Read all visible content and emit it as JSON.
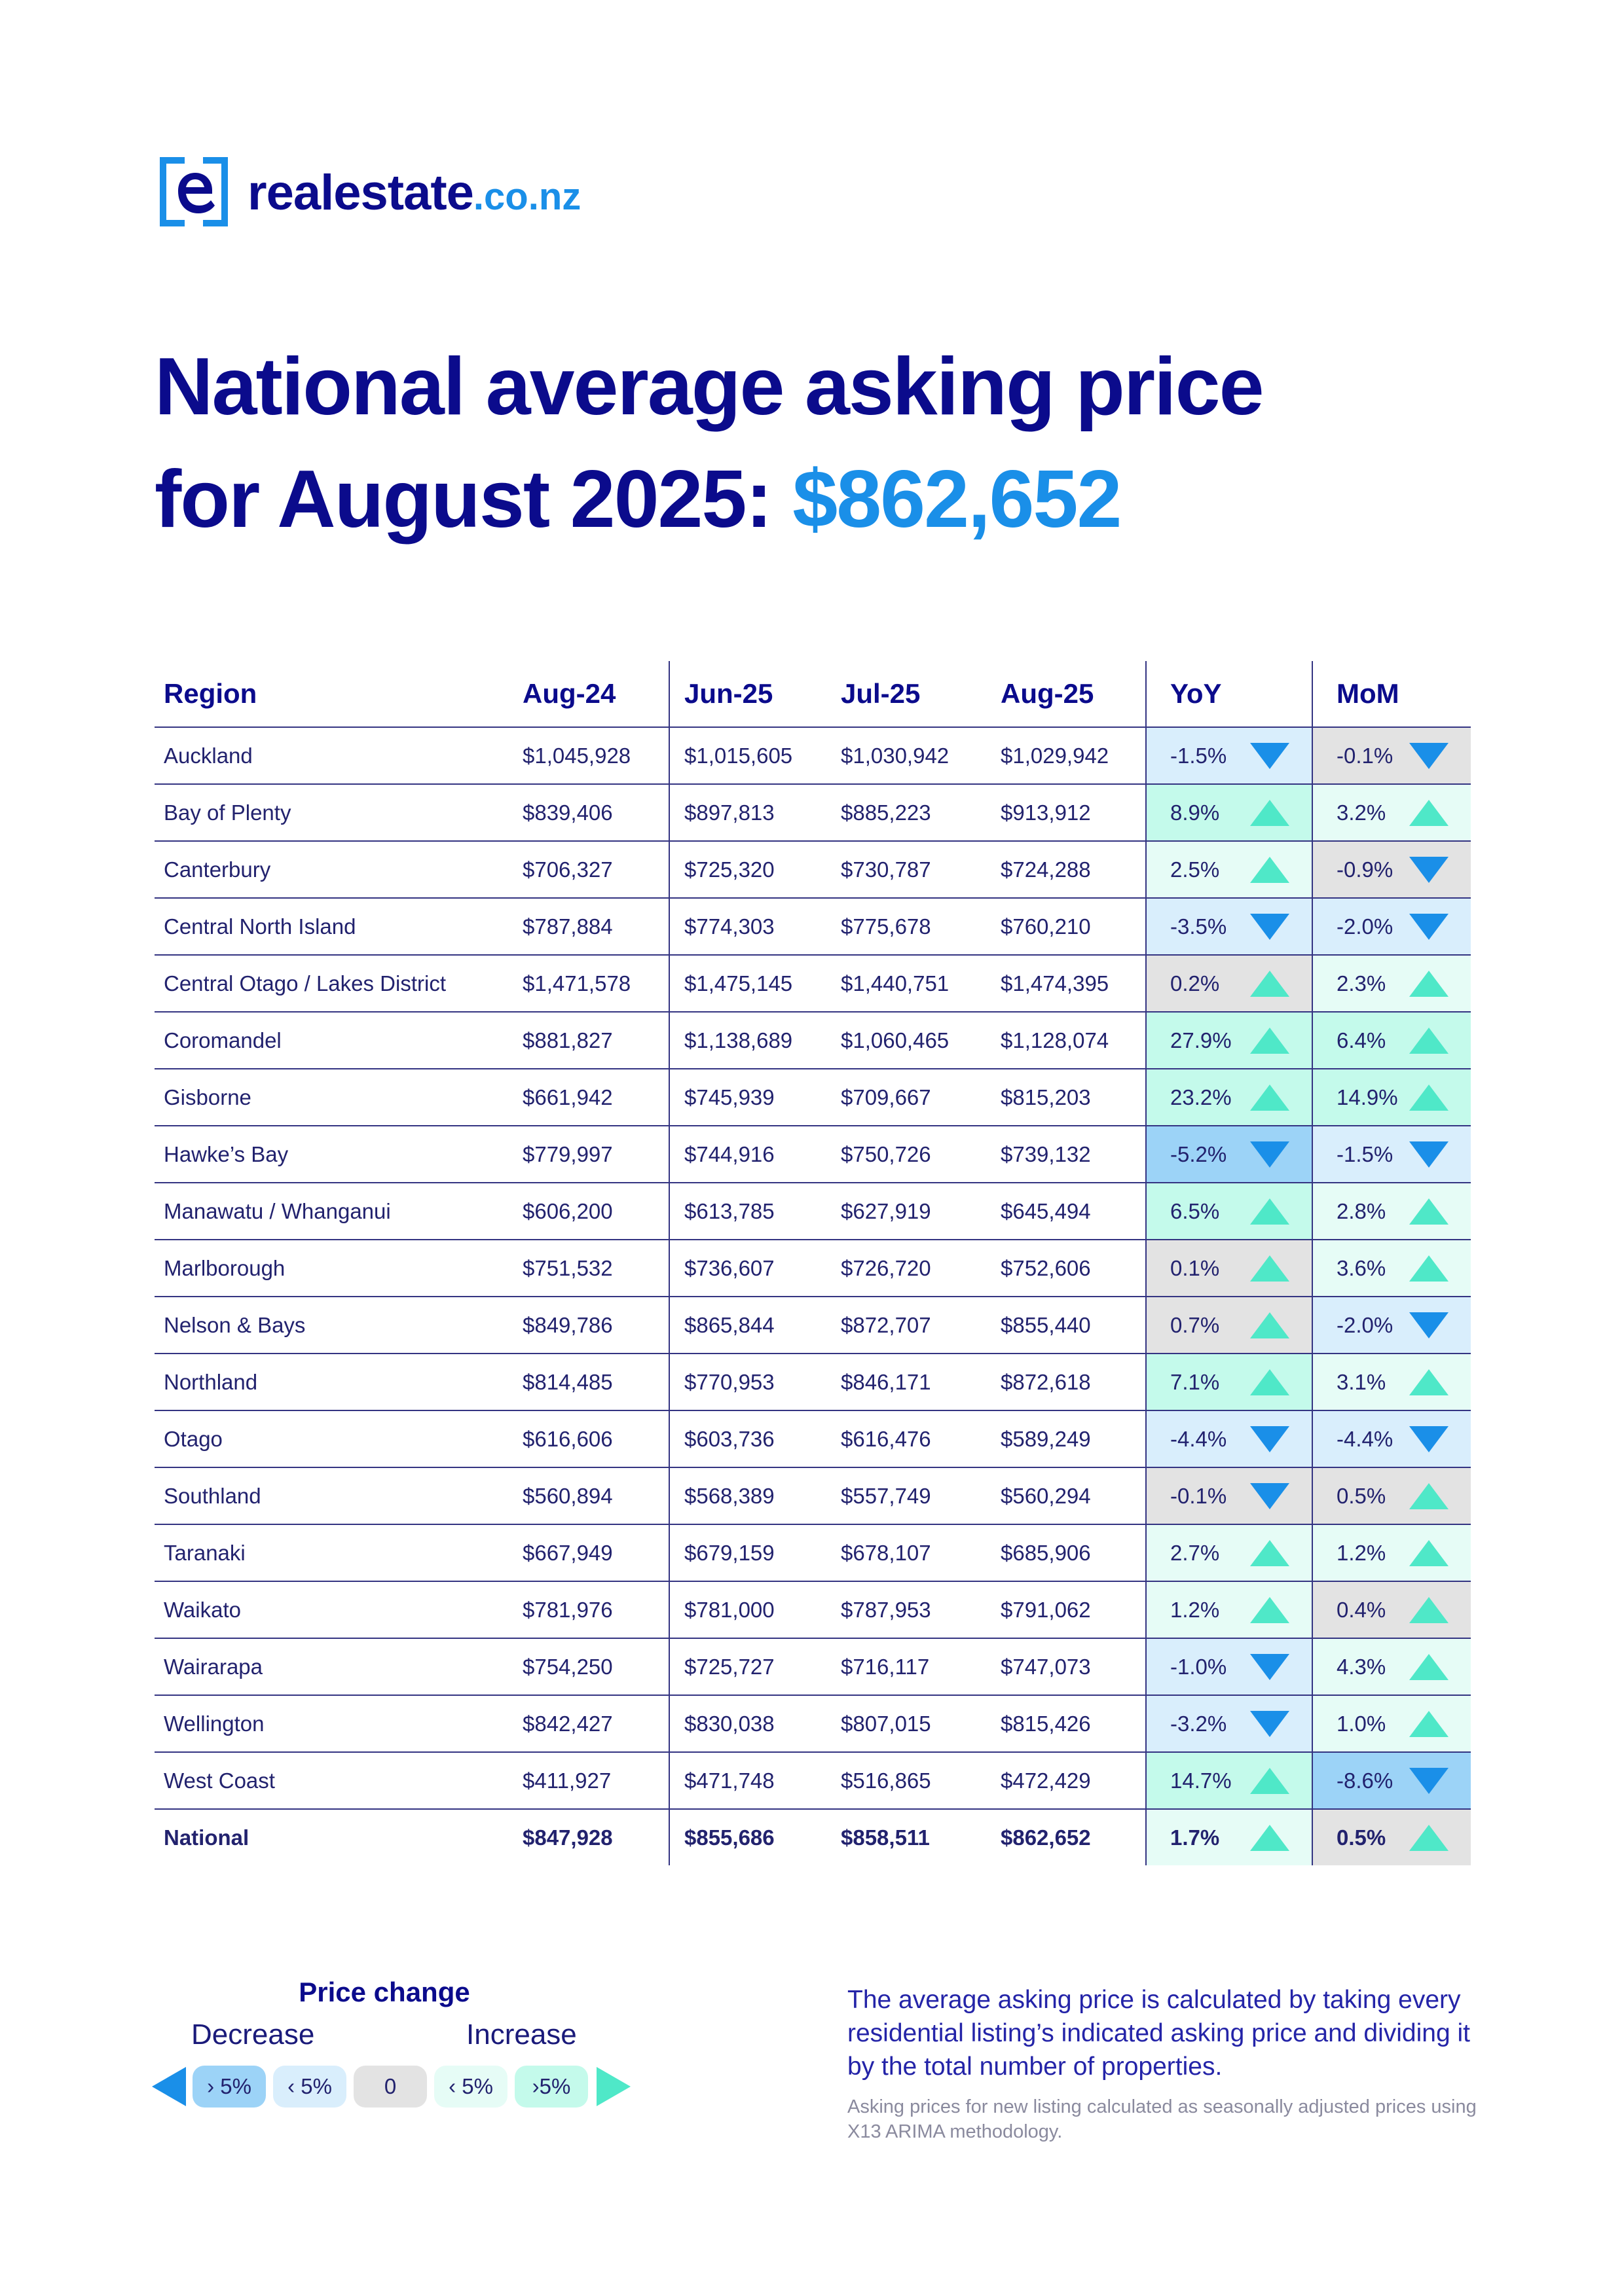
{
  "brand": {
    "name": "realestate",
    "tld": ".co.nz",
    "color_primary": "#0b0b8c",
    "color_accent": "#1a8fe8"
  },
  "heading": {
    "line1": "National average asking price",
    "line2_prefix": "for August 2025:",
    "price": "$862,652"
  },
  "table": {
    "headers": [
      "Region",
      "Aug-24",
      "Jun-25",
      "Jul-25",
      "Aug-25",
      "YoY",
      "MoM"
    ],
    "rows": [
      {
        "region": "Auckland",
        "aug24": "$1,045,928",
        "jun25": "$1,015,605",
        "jul25": "$1,030,942",
        "aug25": "$1,029,942",
        "yoy": "-1.5%",
        "mom": "-0.1%"
      },
      {
        "region": "Bay of Plenty",
        "aug24": "$839,406",
        "jun25": "$897,813",
        "jul25": "$885,223",
        "aug25": "$913,912",
        "yoy": "8.9%",
        "mom": "3.2%"
      },
      {
        "region": "Canterbury",
        "aug24": "$706,327",
        "jun25": "$725,320",
        "jul25": "$730,787",
        "aug25": "$724,288",
        "yoy": "2.5%",
        "mom": "-0.9%"
      },
      {
        "region": "Central North Island",
        "aug24": "$787,884",
        "jun25": "$774,303",
        "jul25": "$775,678",
        "aug25": "$760,210",
        "yoy": "-3.5%",
        "mom": "-2.0%"
      },
      {
        "region": "Central Otago / Lakes District",
        "aug24": "$1,471,578",
        "jun25": "$1,475,145",
        "jul25": "$1,440,751",
        "aug25": "$1,474,395",
        "yoy": "0.2%",
        "mom": "2.3%"
      },
      {
        "region": "Coromandel",
        "aug24": "$881,827",
        "jun25": "$1,138,689",
        "jul25": "$1,060,465",
        "aug25": "$1,128,074",
        "yoy": "27.9%",
        "mom": "6.4%"
      },
      {
        "region": "Gisborne",
        "aug24": "$661,942",
        "jun25": "$745,939",
        "jul25": "$709,667",
        "aug25": "$815,203",
        "yoy": "23.2%",
        "mom": "14.9%"
      },
      {
        "region": "Hawke’s Bay",
        "aug24": "$779,997",
        "jun25": "$744,916",
        "jul25": "$750,726",
        "aug25": "$739,132",
        "yoy": "-5.2%",
        "mom": "-1.5%"
      },
      {
        "region": "Manawatu / Whanganui",
        "aug24": "$606,200",
        "jun25": "$613,785",
        "jul25": "$627,919",
        "aug25": "$645,494",
        "yoy": "6.5%",
        "mom": "2.8%"
      },
      {
        "region": "Marlborough",
        "aug24": "$751,532",
        "jun25": "$736,607",
        "jul25": "$726,720",
        "aug25": "$752,606",
        "yoy": "0.1%",
        "mom": "3.6%"
      },
      {
        "region": "Nelson & Bays",
        "aug24": "$849,786",
        "jun25": "$865,844",
        "jul25": "$872,707",
        "aug25": "$855,440",
        "yoy": "0.7%",
        "mom": "-2.0%"
      },
      {
        "region": "Northland",
        "aug24": "$814,485",
        "jun25": "$770,953",
        "jul25": "$846,171",
        "aug25": "$872,618",
        "yoy": "7.1%",
        "mom": "3.1%"
      },
      {
        "region": "Otago",
        "aug24": "$616,606",
        "jun25": "$603,736",
        "jul25": "$616,476",
        "aug25": "$589,249",
        "yoy": "-4.4%",
        "mom": "-4.4%"
      },
      {
        "region": "Southland",
        "aug24": "$560,894",
        "jun25": "$568,389",
        "jul25": "$557,749",
        "aug25": "$560,294",
        "yoy": "-0.1%",
        "mom": "0.5%"
      },
      {
        "region": "Taranaki",
        "aug24": "$667,949",
        "jun25": "$679,159",
        "jul25": "$678,107",
        "aug25": "$685,906",
        "yoy": "2.7%",
        "mom": "1.2%"
      },
      {
        "region": "Waikato",
        "aug24": "$781,976",
        "jun25": "$781,000",
        "jul25": "$787,953",
        "aug25": "$791,062",
        "yoy": "1.2%",
        "mom": "0.4%"
      },
      {
        "region": "Wairarapa",
        "aug24": "$754,250",
        "jun25": "$725,727",
        "jul25": "$716,117",
        "aug25": "$747,073",
        "yoy": "-1.0%",
        "mom": "4.3%"
      },
      {
        "region": "Wellington",
        "aug24": "$842,427",
        "jun25": "$830,038",
        "jul25": "$807,015",
        "aug25": "$815,426",
        "yoy": "-3.2%",
        "mom": "1.0%"
      },
      {
        "region": "West Coast",
        "aug24": "$411,927",
        "jun25": "$471,748",
        "jul25": "$516,865",
        "aug25": "$472,429",
        "yoy": "14.7%",
        "mom": "-8.6%"
      }
    ],
    "national": {
      "region": "National",
      "aug24": "$847,928",
      "jun25": "$855,686",
      "jul25": "$858,511",
      "aug25": "$862,652",
      "yoy": "1.7%",
      "mom": "0.5%"
    }
  },
  "legend": {
    "title": "Price change",
    "decrease_label": "Decrease",
    "increase_label": "Increase",
    "chips": [
      "› 5%",
      "‹ 5%",
      "0",
      "‹ 5%",
      "›5%"
    ],
    "colors": {
      "big_decrease": "#9cd3f7",
      "small_decrease": "#d9eefc",
      "neutral": "#e3e3e3",
      "small_increase": "#e6fcf6",
      "big_increase": "#c4faeb",
      "arrow_up": "#4fe8c8",
      "arrow_down": "#1a8fe8"
    }
  },
  "notes": {
    "main": "The average asking price is calculated by taking every residential listing’s indicated asking price and dividing it by the total number of properties.",
    "fine": "Asking prices for new listing calculated as seasonally adjusted prices using X13 ARIMA methodology."
  }
}
